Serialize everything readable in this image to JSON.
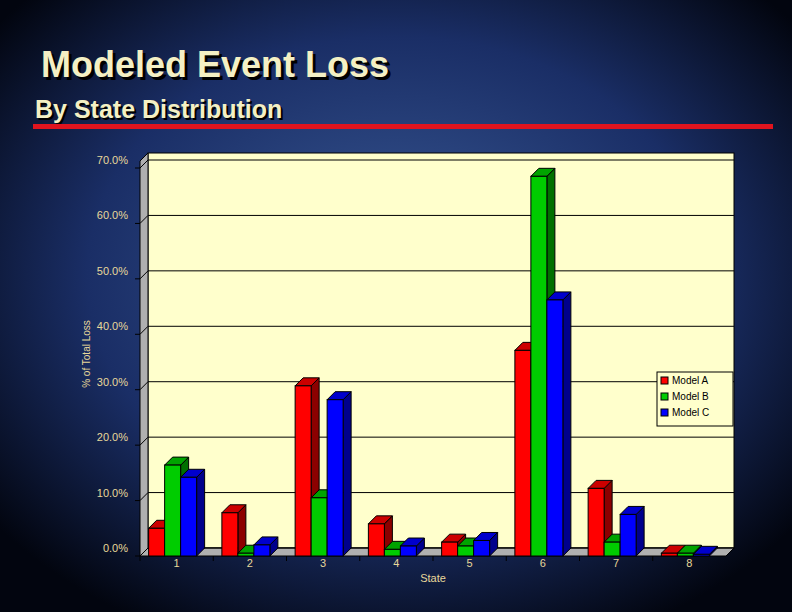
{
  "chart_data": {
    "type": "bar",
    "title": "Modeled Event Loss",
    "subtitle": "By State Distribution",
    "x_label": "State",
    "y_label": "% of Total Loss",
    "categories": [
      "1",
      "2",
      "3",
      "4",
      "5",
      "6",
      "7",
      "8"
    ],
    "series": [
      {
        "name": "Model A",
        "color": "#ff0000",
        "values": [
          5.0,
          7.8,
          30.7,
          5.8,
          2.5,
          37.1,
          12.2,
          0.5
        ]
      },
      {
        "name": "Model B",
        "color": "#00cc00",
        "values": [
          16.4,
          0.5,
          10.5,
          1.2,
          1.8,
          68.5,
          2.5,
          0.5
        ]
      },
      {
        "name": "Model C",
        "color": "#0000ff",
        "values": [
          14.2,
          2.0,
          28.2,
          1.8,
          2.8,
          46.2,
          7.5,
          0.3
        ]
      }
    ],
    "ylim": [
      0,
      70
    ],
    "yticks": [
      {
        "value": 0,
        "label": "0.0%"
      },
      {
        "value": 10,
        "label": "10.0%"
      },
      {
        "value": 20,
        "label": "20.0%"
      },
      {
        "value": 30,
        "label": "30.0%"
      },
      {
        "value": 40,
        "label": "40.0%"
      },
      {
        "value": 50,
        "label": "50.0%"
      },
      {
        "value": 60,
        "label": "60.0%"
      },
      {
        "value": 70,
        "label": "70.0%"
      }
    ],
    "grid": true,
    "legend": "right"
  }
}
